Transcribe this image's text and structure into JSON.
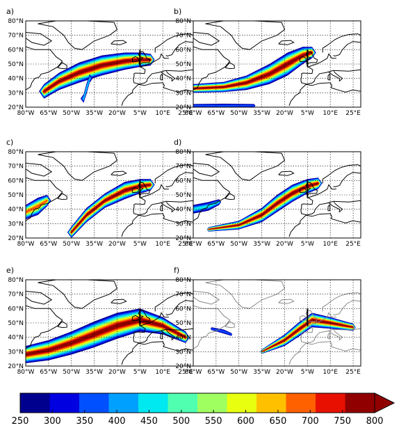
{
  "panels": [
    {
      "letter": "a)"
    },
    {
      "letter": "b)"
    },
    {
      "letter": "c)"
    },
    {
      "letter": "d)"
    },
    {
      "letter": "e)"
    },
    {
      "letter": "f)"
    }
  ],
  "lat_labels": [
    "20°N",
    "30°N",
    "40°N",
    "50°N",
    "60°N",
    "70°N",
    "80°N"
  ],
  "lon_labels": [
    "80°W",
    "65°W",
    "50°W",
    "35°W",
    "20°W",
    "5°W",
    "10°E",
    "25°E"
  ],
  "map_extent": {
    "lon_min": -80,
    "lon_max": 30,
    "lat_min": 20,
    "lat_max": 80
  },
  "colorbar": {
    "ticks": [
      "250",
      "300",
      "350",
      "400",
      "450",
      "500",
      "550",
      "600",
      "650",
      "700",
      "750",
      "800"
    ],
    "colors": [
      "#00008f",
      "#0000e0",
      "#0050ff",
      "#00a0ff",
      "#00e8f0",
      "#50ffb0",
      "#a0ff60",
      "#e8ff10",
      "#ffc000",
      "#ff6000",
      "#e81000",
      "#900000"
    ],
    "extend": "max"
  },
  "colors": {
    "coast": "#000000",
    "coast_faded": "#888888",
    "grid": "#000000",
    "marker": "#000000"
  }
}
